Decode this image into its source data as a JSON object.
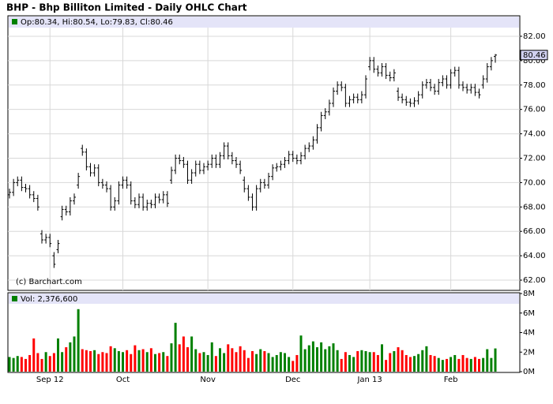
{
  "chart_data": {
    "type": "ohlc",
    "title": "BHP - Bhp Billiton Limited - Daily OHLC Chart",
    "price_header": "Op:80.34, Hi:80.54, Lo:79.83, Cl:80.46",
    "volume_header": "Vol: 2,376,600",
    "copyright": "(c) Barchart.com",
    "categories": [
      null,
      null,
      null,
      null,
      null,
      null,
      null,
      null,
      null,
      null,
      "Sep 12",
      null,
      null,
      null,
      null,
      null,
      null,
      null,
      null,
      null,
      null,
      null,
      null,
      null,
      null,
      null,
      null,
      null,
      "Oct",
      null,
      null,
      null,
      null,
      null,
      null,
      null,
      null,
      null,
      null,
      null,
      null,
      null,
      null,
      null,
      null,
      null,
      null,
      null,
      null,
      "Nov",
      null,
      null,
      null,
      null,
      null,
      null,
      null,
      null,
      null,
      null,
      null,
      null,
      null,
      null,
      null,
      null,
      null,
      null,
      null,
      null,
      "Dec",
      null,
      null,
      null,
      null,
      null,
      null,
      null,
      null,
      null,
      null,
      null,
      null,
      null,
      null,
      null,
      null,
      null,
      null,
      "Jan 13",
      null,
      null,
      null,
      null,
      null,
      null,
      null,
      null,
      null,
      null,
      null,
      null,
      null,
      null,
      null,
      null,
      null,
      null,
      null,
      "Feb",
      null,
      null,
      null,
      null,
      null,
      null,
      null,
      null,
      null,
      null,
      null
    ],
    "open": [
      69.0,
      69.2,
      70.0,
      70.2,
      69.6,
      69.5,
      69.0,
      68.7,
      65.8,
      65.3,
      65.5,
      64.0,
      64.5,
      67.2,
      67.8,
      67.6,
      68.5,
      69.8,
      72.8,
      72.5,
      71.3,
      70.8,
      71.2,
      70.0,
      69.8,
      69.5,
      68.0,
      68.5,
      69.8,
      70.2,
      69.8,
      68.5,
      68.2,
      68.8,
      68.0,
      68.3,
      68.2,
      68.8,
      68.6,
      69.0,
      70.2,
      71.0,
      72.0,
      71.8,
      71.5,
      70.2,
      70.8,
      71.5,
      71.0,
      71.3,
      71.5,
      72.0,
      71.5,
      72.2,
      73.0,
      72.2,
      71.8,
      71.5,
      70.2,
      69.5,
      68.8,
      68.0,
      69.5,
      70.0,
      69.8,
      70.5,
      71.2,
      71.3,
      71.5,
      71.8,
      72.3,
      72.0,
      71.8,
      72.2,
      72.8,
      73.0,
      73.5,
      74.5,
      75.5,
      75.8,
      76.5,
      77.5,
      78.0,
      77.8,
      76.5,
      76.8,
      77.0,
      76.8,
      77.2,
      79.5,
      80.0,
      79.3,
      79.0,
      79.5,
      78.8,
      78.6,
      77.5,
      77.0,
      76.8,
      76.6,
      76.5,
      76.7,
      77.2,
      78.0,
      78.2,
      77.8,
      77.5,
      78.2,
      78.5,
      78.0,
      79.0,
      79.2,
      78.0,
      77.8,
      77.6,
      77.8,
      77.4,
      78.0,
      78.5,
      79.5,
      80.34
    ],
    "high": [
      69.5,
      70.3,
      70.5,
      70.5,
      69.9,
      69.8,
      69.3,
      69.0,
      66.1,
      65.8,
      65.8,
      64.3,
      65.3,
      68.1,
      68.1,
      68.8,
      69.1,
      70.8,
      73.1,
      72.8,
      71.6,
      71.5,
      71.5,
      70.3,
      70.1,
      69.8,
      68.8,
      70.1,
      70.5,
      70.5,
      70.1,
      68.8,
      69.1,
      69.1,
      68.6,
      68.6,
      69.1,
      69.1,
      69.3,
      69.3,
      71.3,
      72.3,
      72.3,
      72.1,
      71.8,
      71.1,
      71.8,
      71.8,
      71.6,
      71.8,
      72.3,
      72.3,
      72.5,
      73.3,
      73.3,
      72.5,
      72.1,
      71.8,
      70.5,
      69.8,
      69.1,
      69.8,
      70.3,
      70.3,
      70.8,
      71.5,
      71.6,
      71.8,
      72.1,
      72.6,
      72.6,
      72.3,
      72.5,
      73.1,
      73.3,
      73.8,
      74.8,
      75.8,
      76.1,
      76.8,
      77.8,
      78.3,
      78.3,
      78.1,
      77.1,
      77.3,
      77.3,
      77.5,
      78.8,
      80.3,
      80.3,
      79.6,
      79.8,
      79.8,
      79.1,
      79.3,
      77.8,
      77.3,
      77.1,
      76.9,
      77.0,
      77.5,
      78.3,
      78.5,
      78.5,
      78.1,
      78.5,
      78.8,
      78.8,
      79.3,
      79.5,
      79.5,
      78.3,
      78.1,
      78.1,
      78.1,
      77.7,
      78.8,
      79.8,
      80.3,
      80.54
    ],
    "low": [
      68.7,
      68.9,
      69.7,
      69.3,
      69.2,
      68.7,
      68.4,
      67.7,
      65.0,
      65.0,
      64.7,
      63.0,
      64.2,
      66.9,
      67.3,
      67.3,
      68.2,
      69.5,
      72.2,
      71.0,
      70.5,
      70.5,
      69.7,
      69.5,
      69.2,
      67.7,
      67.7,
      68.2,
      69.5,
      69.5,
      68.2,
      67.9,
      67.9,
      67.7,
      67.7,
      67.9,
      67.9,
      68.3,
      68.3,
      68.0,
      69.9,
      70.7,
      71.5,
      71.2,
      69.9,
      69.9,
      70.5,
      70.7,
      70.7,
      71.0,
      71.2,
      71.2,
      71.2,
      71.9,
      71.9,
      71.5,
      71.2,
      70.7,
      69.2,
      68.5,
      67.7,
      67.7,
      69.2,
      69.5,
      69.5,
      70.2,
      70.9,
      71.0,
      71.2,
      71.5,
      71.7,
      71.5,
      71.5,
      71.9,
      72.5,
      72.7,
      73.2,
      74.2,
      75.2,
      75.5,
      76.2,
      77.2,
      77.5,
      76.2,
      76.2,
      76.5,
      76.5,
      76.5,
      76.9,
      79.2,
      79.0,
      78.7,
      78.7,
      78.5,
      78.3,
      78.3,
      76.7,
      76.5,
      76.3,
      76.2,
      76.2,
      76.4,
      76.9,
      77.7,
      77.5,
      77.2,
      77.2,
      77.9,
      77.7,
      77.7,
      78.7,
      77.7,
      77.5,
      77.3,
      77.3,
      77.1,
      76.9,
      77.7,
      78.2,
      79.2,
      79.83
    ],
    "close": [
      69.2,
      70.0,
      70.2,
      69.6,
      69.5,
      69.0,
      68.7,
      68.0,
      65.3,
      65.5,
      65.0,
      63.3,
      65.0,
      67.8,
      67.6,
      68.5,
      68.8,
      70.5,
      72.5,
      71.3,
      70.8,
      71.2,
      70.0,
      69.8,
      69.5,
      68.0,
      68.5,
      69.8,
      70.2,
      69.8,
      68.5,
      68.2,
      68.8,
      68.0,
      68.3,
      68.2,
      68.8,
      68.6,
      69.0,
      68.3,
      71.0,
      72.0,
      71.8,
      71.5,
      70.2,
      70.8,
      71.5,
      71.0,
      71.3,
      71.5,
      72.0,
      71.5,
      72.2,
      73.0,
      72.2,
      71.8,
      71.5,
      71.0,
      69.5,
      68.8,
      68.0,
      69.5,
      70.0,
      69.8,
      70.5,
      71.2,
      71.3,
      71.5,
      71.8,
      72.3,
      72.0,
      71.8,
      72.2,
      72.8,
      73.0,
      73.5,
      74.5,
      75.5,
      75.8,
      76.5,
      77.5,
      78.0,
      77.8,
      76.5,
      76.8,
      77.0,
      76.8,
      77.2,
      78.5,
      80.0,
      79.3,
      79.0,
      79.5,
      78.8,
      78.6,
      79.0,
      77.0,
      76.8,
      76.6,
      76.5,
      76.7,
      77.2,
      78.0,
      78.2,
      77.8,
      77.5,
      78.2,
      78.5,
      78.0,
      79.0,
      79.2,
      78.0,
      77.8,
      77.6,
      77.8,
      77.4,
      77.2,
      78.5,
      79.5,
      80.0,
      80.46
    ],
    "volume": [
      1500000,
      1400000,
      1600000,
      1500000,
      1300000,
      1700000,
      3400000,
      1900000,
      1300000,
      2000000,
      1600000,
      1900000,
      3400000,
      2000000,
      2500000,
      3000000,
      3600000,
      6400000,
      2300000,
      2200000,
      2100000,
      2200000,
      1800000,
      2000000,
      1900000,
      2600000,
      2400000,
      2100000,
      2000000,
      2200000,
      1800000,
      2700000,
      2200000,
      2300000,
      2000000,
      2400000,
      1800000,
      1900000,
      2000000,
      1600000,
      2900000,
      5000000,
      2800000,
      3600000,
      2500000,
      3600000,
      2300000,
      1900000,
      2000000,
      1700000,
      3000000,
      1600000,
      2400000,
      1900000,
      2800000,
      2400000,
      2000000,
      2600000,
      2200000,
      1400000,
      2100000,
      1800000,
      2300000,
      2100000,
      1900000,
      1500000,
      1700000,
      2000000,
      1900000,
      1500000,
      1100000,
      1700000,
      3700000,
      2300000,
      2700000,
      3100000,
      2500000,
      3000000,
      2300000,
      2600000,
      2900000,
      2200000,
      1300000,
      2000000,
      1700000,
      1500000,
      2100000,
      2200000,
      2100000,
      2000000,
      2000000,
      1700000,
      2800000,
      1200000,
      1900000,
      2100000,
      2500000,
      2200000,
      1700000,
      1500000,
      1600000,
      1800000,
      2200000,
      2600000,
      1700000,
      1600000,
      1400000,
      1200000,
      1300000,
      1500000,
      1700000,
      1300000,
      1700000,
      1400000,
      1300000,
      1500000,
      1300000,
      1400000,
      2300000,
      1400000,
      2376600
    ],
    "ylim": [
      61.16,
      82.58
    ],
    "yticks": [
      {
        "value": 62,
        "label": "62.00"
      },
      {
        "value": 64,
        "label": "64.00"
      },
      {
        "value": 66,
        "label": "66.00"
      },
      {
        "value": 68,
        "label": "68.00"
      },
      {
        "value": 70,
        "label": "70.00"
      },
      {
        "value": 72,
        "label": "72.00"
      },
      {
        "value": 74,
        "label": "74.00"
      },
      {
        "value": 76,
        "label": "76.00"
      },
      {
        "value": 78,
        "label": "78.00"
      },
      {
        "value": 80,
        "label": "80.00"
      },
      {
        "value": 82,
        "label": "82.00"
      }
    ],
    "vol_ylim": [
      0,
      8000000
    ],
    "vol_yticks": [
      {
        "value": 0,
        "label": "0M"
      },
      {
        "value": 2000000,
        "label": "2M"
      },
      {
        "value": 4000000,
        "label": "4M"
      },
      {
        "value": 6000000,
        "label": "6M"
      },
      {
        "value": 8000000,
        "label": "8M"
      }
    ],
    "bar_color": "#000000",
    "up_color": "#008000",
    "down_color": "#ff0000",
    "grid": true
  }
}
